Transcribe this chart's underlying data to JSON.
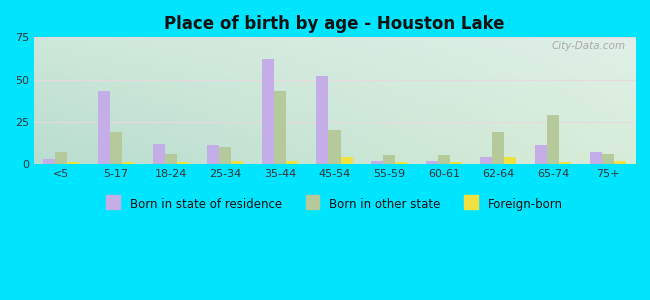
{
  "title": "Place of birth by age - Houston Lake",
  "categories": [
    "<5",
    "5-17",
    "18-24",
    "25-34",
    "35-44",
    "45-54",
    "55-59",
    "60-61",
    "62-64",
    "65-74",
    "75+"
  ],
  "born_in_state": [
    3,
    43,
    12,
    11,
    62,
    52,
    2,
    2,
    4,
    11,
    7
  ],
  "born_other_state": [
    7,
    19,
    6,
    10,
    43,
    20,
    5,
    5,
    19,
    29,
    6
  ],
  "foreign_born": [
    1,
    1,
    1,
    2,
    2,
    4,
    1,
    1,
    4,
    1,
    2
  ],
  "color_state": "#c5aee8",
  "color_other": "#b5c99a",
  "color_foreign": "#f0e040",
  "ylim": [
    0,
    75
  ],
  "yticks": [
    0,
    25,
    50,
    75
  ],
  "bg_color_topleft": "#b2dfdb",
  "bg_color_topright": "#e8f5e9",
  "bg_color_bottomleft": "#b2dfdb",
  "bg_color_bottomright": "#e8f5e9",
  "outer_bg": "#00e5ff",
  "bar_width": 0.22,
  "watermark": "City-Data.com",
  "legend_labels": [
    "Born in state of residence",
    "Born in other state",
    "Foreign-born"
  ]
}
